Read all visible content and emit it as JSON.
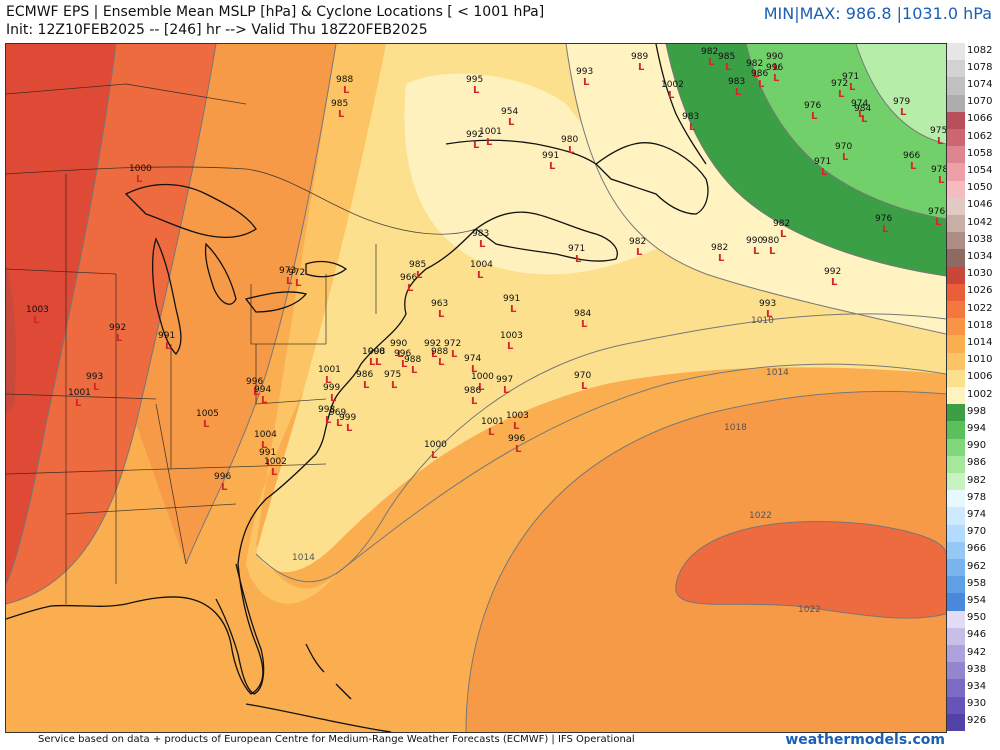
{
  "header": {
    "title": "ECMWF EPS | Ensemble Mean MSLP [hPa] & Cyclone Locations [ < 1001 hPa]",
    "subtitle": "Init: 12Z10FEB2025 -- [246] hr --> Valid Thu 18Z20FEB2025",
    "minmax": "MIN|MAX: 986.8 |1031.0 hPa"
  },
  "footer": {
    "credit": "Service based on data + products of European Centre for Medium-Range Weather Forecasts (ECMWF) | IFS Operational",
    "brand": "weathermodels.com"
  },
  "colors": {
    "ocean_low": "#fff5c8",
    "ocean_mid": "#fde59a",
    "ocean_orange": "#fbbf5c",
    "deep_orange": "#f79a48",
    "red_orange": "#ee6a3f",
    "red": "#de4a35",
    "green_dark": "#3ca24a",
    "green_mid": "#72d06a",
    "green_light": "#b6eda8"
  },
  "isobar_labels": [
    "1010",
    "1014",
    "1018",
    "1022",
    "1022",
    "1014"
  ],
  "colorbar": {
    "ticks": [
      "1082",
      "1078",
      "1074",
      "1070",
      "1066",
      "1062",
      "1058",
      "1054",
      "1050",
      "1046",
      "1042",
      "1038",
      "1034",
      "1030",
      "1026",
      "1022",
      "1018",
      "1014",
      "1010",
      "1006",
      "1002",
      "998",
      "994",
      "990",
      "986",
      "982",
      "978",
      "974",
      "970",
      "966",
      "962",
      "958",
      "954",
      "950",
      "946",
      "942",
      "938",
      "934",
      "930",
      "926"
    ],
    "colors": [
      "#e6e6e6",
      "#d2d2d2",
      "#c0c0c0",
      "#adadad",
      "#b94f5a",
      "#cc6670",
      "#dd8590",
      "#eca0a8",
      "#f4bcc0",
      "#e2cac4",
      "#c9aea8",
      "#ad8d86",
      "#8f6a62",
      "#c9463a",
      "#ec5d3a",
      "#f3773f",
      "#f79446",
      "#faae50",
      "#fcc464",
      "#fde08e",
      "#fff3c2",
      "#3b9f46",
      "#5bc05a",
      "#80d87a",
      "#a5e79b",
      "#c8f3c0",
      "#e8f8ff",
      "#cfeaff",
      "#b3dbff",
      "#95c8f5",
      "#7ab4ee",
      "#5f9fe6",
      "#4a88de",
      "#e2dcf4",
      "#c8bfe9",
      "#ada2dc",
      "#9485cf",
      "#7b6bc2",
      "#6655b6",
      "#5242a8"
    ]
  },
  "lows": [
    {
      "v": "988"
    },
    {
      "v": "985"
    },
    {
      "v": "995"
    },
    {
      "v": "993"
    },
    {
      "v": "989"
    },
    {
      "v": "982"
    },
    {
      "v": "985"
    },
    {
      "v": "982"
    },
    {
      "v": "990"
    },
    {
      "v": "983"
    },
    {
      "v": "996"
    },
    {
      "v": "986"
    },
    {
      "v": "1002"
    },
    {
      "v": "954"
    },
    {
      "v": "1001"
    },
    {
      "v": "992"
    },
    {
      "v": "980"
    },
    {
      "v": "991"
    },
    {
      "v": "983"
    },
    {
      "v": "972"
    },
    {
      "v": "971"
    },
    {
      "v": "974"
    },
    {
      "v": "984"
    },
    {
      "v": "979"
    },
    {
      "v": "976"
    },
    {
      "v": "970"
    },
    {
      "v": "971"
    },
    {
      "v": "966"
    },
    {
      "v": "975"
    },
    {
      "v": "978"
    },
    {
      "v": "1000"
    },
    {
      "v": "1003"
    },
    {
      "v": "972"
    },
    {
      "v": "973"
    },
    {
      "v": "983"
    },
    {
      "v": "985"
    },
    {
      "v": "1004"
    },
    {
      "v": "966"
    },
    {
      "v": "971"
    },
    {
      "v": "982"
    },
    {
      "v": "982"
    },
    {
      "v": "990"
    },
    {
      "v": "980"
    },
    {
      "v": "982"
    },
    {
      "v": "992"
    },
    {
      "v": "976"
    },
    {
      "v": "976"
    },
    {
      "v": "963"
    },
    {
      "v": "991"
    },
    {
      "v": "984"
    },
    {
      "v": "993"
    },
    {
      "v": "1003"
    },
    {
      "v": "992"
    },
    {
      "v": "991"
    },
    {
      "v": "990"
    },
    {
      "v": "996"
    },
    {
      "v": "998"
    },
    {
      "v": "988"
    },
    {
      "v": "992"
    },
    {
      "v": "972"
    },
    {
      "v": "988"
    },
    {
      "v": "1000"
    },
    {
      "v": "974"
    },
    {
      "v": "997"
    },
    {
      "v": "1001"
    },
    {
      "v": "986"
    },
    {
      "v": "975"
    },
    {
      "v": "1000"
    },
    {
      "v": "999"
    },
    {
      "v": "996"
    },
    {
      "v": "993"
    },
    {
      "v": "994"
    },
    {
      "v": "986"
    },
    {
      "v": "970"
    },
    {
      "v": "1001"
    },
    {
      "v": "998"
    },
    {
      "v": "1005"
    },
    {
      "v": "969"
    },
    {
      "v": "999"
    },
    {
      "v": "1003"
    },
    {
      "v": "1004"
    },
    {
      "v": "991"
    },
    {
      "v": "1002"
    },
    {
      "v": "996"
    },
    {
      "v": "1000"
    },
    {
      "v": "996"
    },
    {
      "v": "1001"
    }
  ]
}
